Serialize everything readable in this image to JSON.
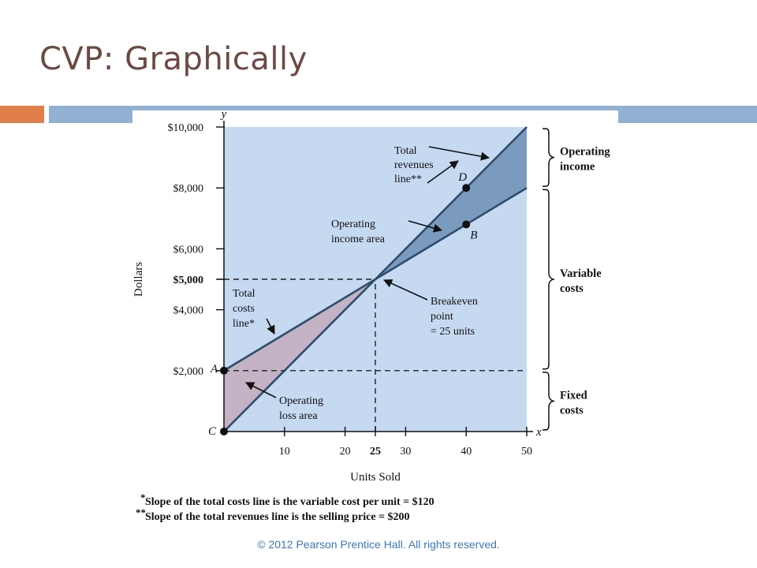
{
  "slide": {
    "title": "CVP: Graphically",
    "copyright": "© 2012 Pearson Prentice Hall. All rights reserved."
  },
  "colors": {
    "title": "#6b4a42",
    "accent_orange": "#e07f4c",
    "accent_blue": "#92b1d2",
    "plot_bg": "#c5d9f1",
    "profit_area": "#6d8fb5",
    "loss_area": "#c2aebf",
    "line": "#2f4d6b"
  },
  "chart_data": {
    "type": "line",
    "xlabel": "Units Sold",
    "ylabel": "Dollars",
    "x_axis_symbol": "x",
    "y_axis_symbol": "y",
    "xlim": [
      0,
      50
    ],
    "ylim": [
      0,
      10000
    ],
    "x_ticks": [
      10,
      20,
      25,
      30,
      40,
      50
    ],
    "x_tick_labels": [
      "10",
      "20",
      "25",
      "30",
      "40",
      "50"
    ],
    "y_ticks": [
      2000,
      4000,
      5000,
      6000,
      8000,
      10000
    ],
    "y_tick_labels": [
      "$2,000",
      "$4,000",
      "$5,000",
      "$6,000",
      "$8,000",
      "$10,000"
    ],
    "emphasized_y_tick": 5000,
    "emphasized_x_tick": 25,
    "series": [
      {
        "key": "total_costs",
        "x": [
          0,
          50
        ],
        "y": [
          2000,
          8000
        ]
      },
      {
        "key": "total_revenues",
        "x": [
          0,
          50
        ],
        "y": [
          0,
          10000
        ]
      }
    ],
    "reference_lines": [
      {
        "orientation": "horizontal",
        "y": 2000,
        "x_range": [
          0,
          50
        ],
        "style": "dashed"
      },
      {
        "orientation": "horizontal",
        "y": 5000,
        "x_range": [
          0,
          25
        ],
        "style": "dashed"
      },
      {
        "orientation": "vertical",
        "x": 25,
        "y_range": [
          0,
          5000
        ],
        "style": "dashed"
      }
    ],
    "points": [
      {
        "label": "A",
        "x": 0,
        "y": 2000
      },
      {
        "label": "C",
        "x": 0,
        "y": 0
      },
      {
        "label": "D",
        "x": 40,
        "y": 8000
      },
      {
        "label": "B",
        "x": 40,
        "y": 6800
      }
    ],
    "annotations": {
      "total_revenues_line": "Total revenues line**",
      "total_costs_line": "Total costs line*",
      "operating_income_area": "Operating income area",
      "operating_loss_area": "Operating loss area",
      "breakeven": "Breakeven point = 25 units"
    },
    "brackets": [
      {
        "label": "Operating income",
        "y_range": [
          8000,
          10000
        ]
      },
      {
        "label": "Variable costs",
        "y_range": [
          2000,
          8000
        ]
      },
      {
        "label": "Fixed costs",
        "y_range": [
          0,
          2000
        ]
      }
    ],
    "footnotes": [
      {
        "marker": "*",
        "text": "Slope of the total costs line is the variable cost per unit = $120"
      },
      {
        "marker": "**",
        "text": "Slope of the total revenues line is the selling price = $200"
      }
    ]
  }
}
